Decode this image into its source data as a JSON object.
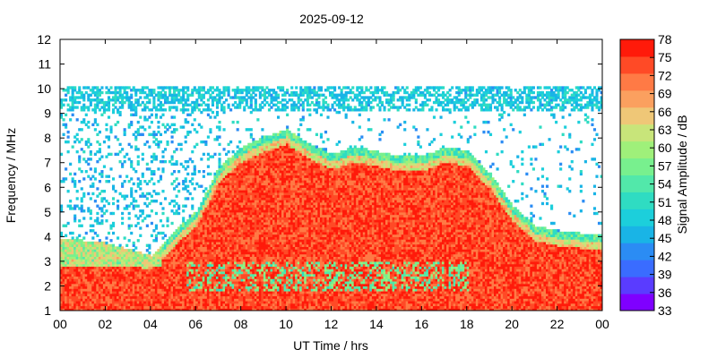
{
  "chart_data": {
    "type": "heatmap",
    "title": "2025-09-12",
    "xlabel": "UT Time / hrs",
    "ylabel": "Frequency / MHz",
    "colorbar_label": "Signal Amplitude / dB",
    "xlim": [
      0,
      24
    ],
    "ylim": [
      1,
      12
    ],
    "x_ticks": [
      "00",
      "02",
      "04",
      "06",
      "08",
      "10",
      "12",
      "14",
      "16",
      "18",
      "20",
      "22",
      "00"
    ],
    "y_ticks": [
      "1",
      "2",
      "3",
      "4",
      "5",
      "6",
      "7",
      "8",
      "9",
      "10",
      "11",
      "12"
    ],
    "colorbar_ticks": [
      "33",
      "36",
      "39",
      "42",
      "45",
      "48",
      "51",
      "54",
      "57",
      "60",
      "63",
      "66",
      "69",
      "72",
      "75",
      "78"
    ],
    "color_range": [
      33,
      78
    ],
    "colormap": [
      "#7f00ff",
      "#5a3cff",
      "#3a6cff",
      "#2b8cf4",
      "#19b4e6",
      "#1ccfdb",
      "#2fdcc2",
      "#52e8aa",
      "#78f08e",
      "#9ff07a",
      "#c8e57a",
      "#efc777",
      "#fba05f",
      "#ff7a45",
      "#ff4a26",
      "#ff1a0a"
    ],
    "grid": false,
    "description_fields": {
      "intense_band_top_mhz": [
        [
          0,
          3.9
        ],
        [
          2,
          3.7
        ],
        [
          4,
          3.2
        ],
        [
          5,
          4.2
        ],
        [
          6,
          5.0
        ],
        [
          7,
          6.8
        ],
        [
          8,
          7.6
        ],
        [
          9,
          8.0
        ],
        [
          10,
          8.3
        ],
        [
          11,
          7.7
        ],
        [
          12,
          7.3
        ],
        [
          13,
          7.6
        ],
        [
          14,
          7.4
        ],
        [
          15,
          7.2
        ],
        [
          16,
          7.2
        ],
        [
          17,
          7.6
        ],
        [
          18,
          7.4
        ],
        [
          19,
          6.5
        ],
        [
          20,
          5.2
        ],
        [
          21,
          4.4
        ],
        [
          22,
          4.2
        ],
        [
          24,
          4.0
        ]
      ],
      "noise_band_mhz": [
        9,
        10
      ]
    }
  }
}
